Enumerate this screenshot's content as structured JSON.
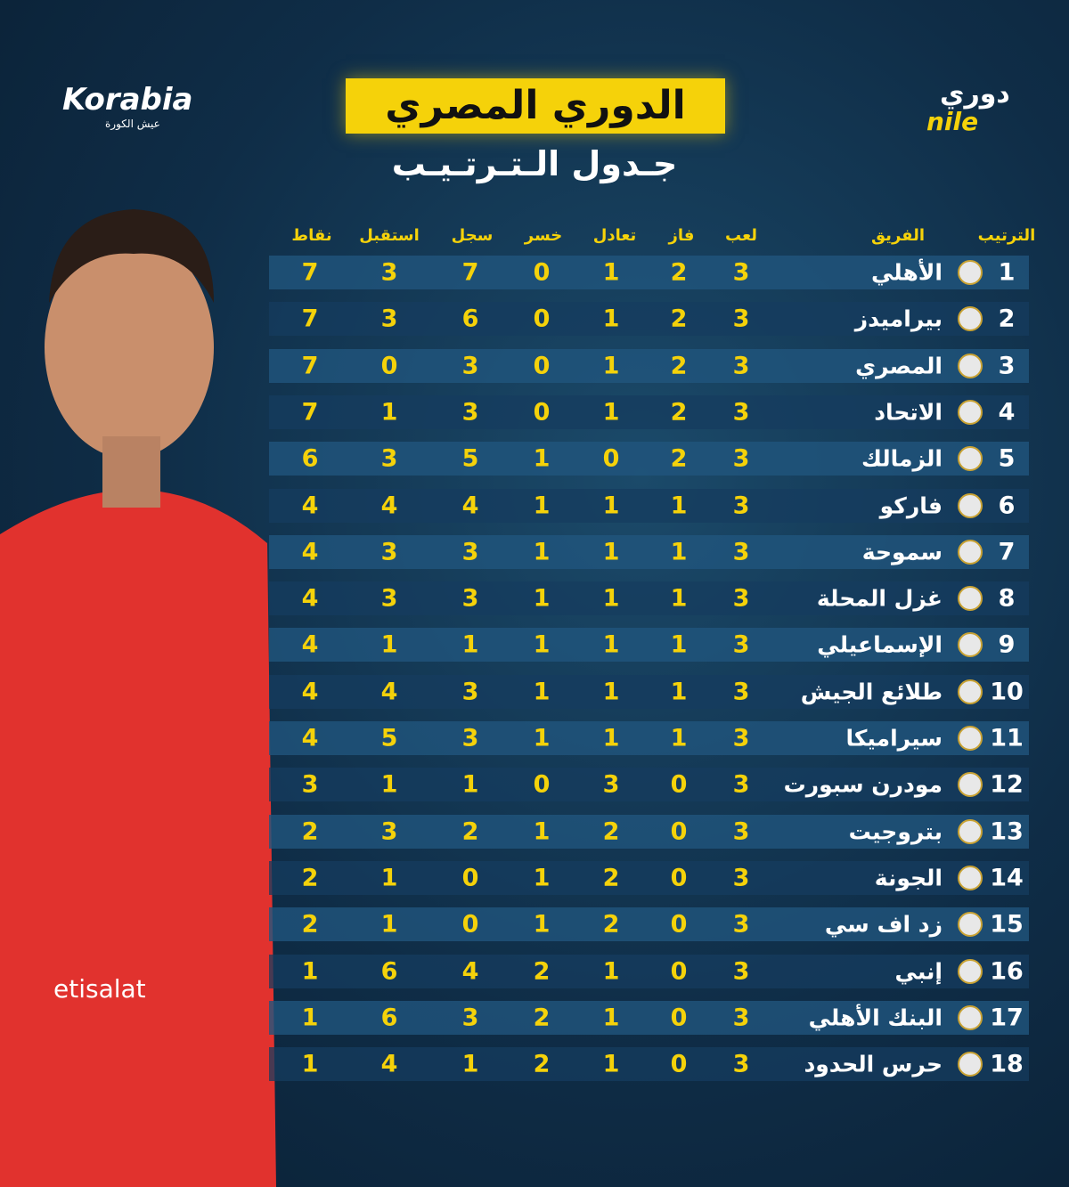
{
  "header": {
    "title": "الدوري المصري",
    "subtitle": "جـدول الـتـرتـيـب",
    "brand": "Korabia",
    "brand_tagline": "عيش الكورة",
    "league_logo_top": "دوري",
    "league_logo_bottom": "nile"
  },
  "table": {
    "headers": [
      "الترتيب",
      "الفريق",
      "لعب",
      "فاز",
      "تعادل",
      "خسر",
      "سجل",
      "استقبل",
      "نقاط"
    ],
    "rows": [
      [
        1,
        "الأهلي",
        3,
        2,
        1,
        0,
        7,
        3,
        7
      ],
      [
        2,
        "بيراميدز",
        3,
        2,
        1,
        0,
        6,
        3,
        7
      ],
      [
        3,
        "المصري",
        3,
        2,
        1,
        0,
        3,
        0,
        7
      ],
      [
        4,
        "الاتحاد",
        3,
        2,
        1,
        0,
        3,
        1,
        7
      ],
      [
        5,
        "الزمالك",
        3,
        2,
        0,
        1,
        5,
        3,
        6
      ],
      [
        6,
        "فاركو",
        3,
        1,
        1,
        1,
        4,
        4,
        4
      ],
      [
        7,
        "سموحة",
        3,
        1,
        1,
        1,
        3,
        3,
        4
      ],
      [
        8,
        "غزل المحلة",
        3,
        1,
        1,
        1,
        3,
        3,
        4
      ],
      [
        9,
        "الإسماعيلي",
        3,
        1,
        1,
        1,
        1,
        1,
        4
      ],
      [
        10,
        "طلائع الجيش",
        3,
        1,
        1,
        1,
        3,
        4,
        4
      ],
      [
        11,
        "سيراميكا",
        3,
        1,
        1,
        1,
        3,
        5,
        4
      ],
      [
        12,
        "مودرن سبورت",
        3,
        0,
        3,
        0,
        1,
        1,
        3
      ],
      [
        13,
        "بتروجيت",
        3,
        0,
        2,
        1,
        2,
        3,
        2
      ],
      [
        14,
        "الجونة",
        3,
        0,
        2,
        1,
        0,
        1,
        2
      ],
      [
        15,
        "زد اف سي",
        3,
        0,
        2,
        1,
        0,
        1,
        2
      ],
      [
        16,
        "إنبي",
        3,
        0,
        1,
        2,
        4,
        6,
        1
      ],
      [
        17,
        "البنك الأهلي",
        3,
        0,
        1,
        2,
        3,
        6,
        1
      ],
      [
        18,
        "حرس الحدود",
        3,
        0,
        1,
        2,
        1,
        4,
        1
      ]
    ]
  }
}
